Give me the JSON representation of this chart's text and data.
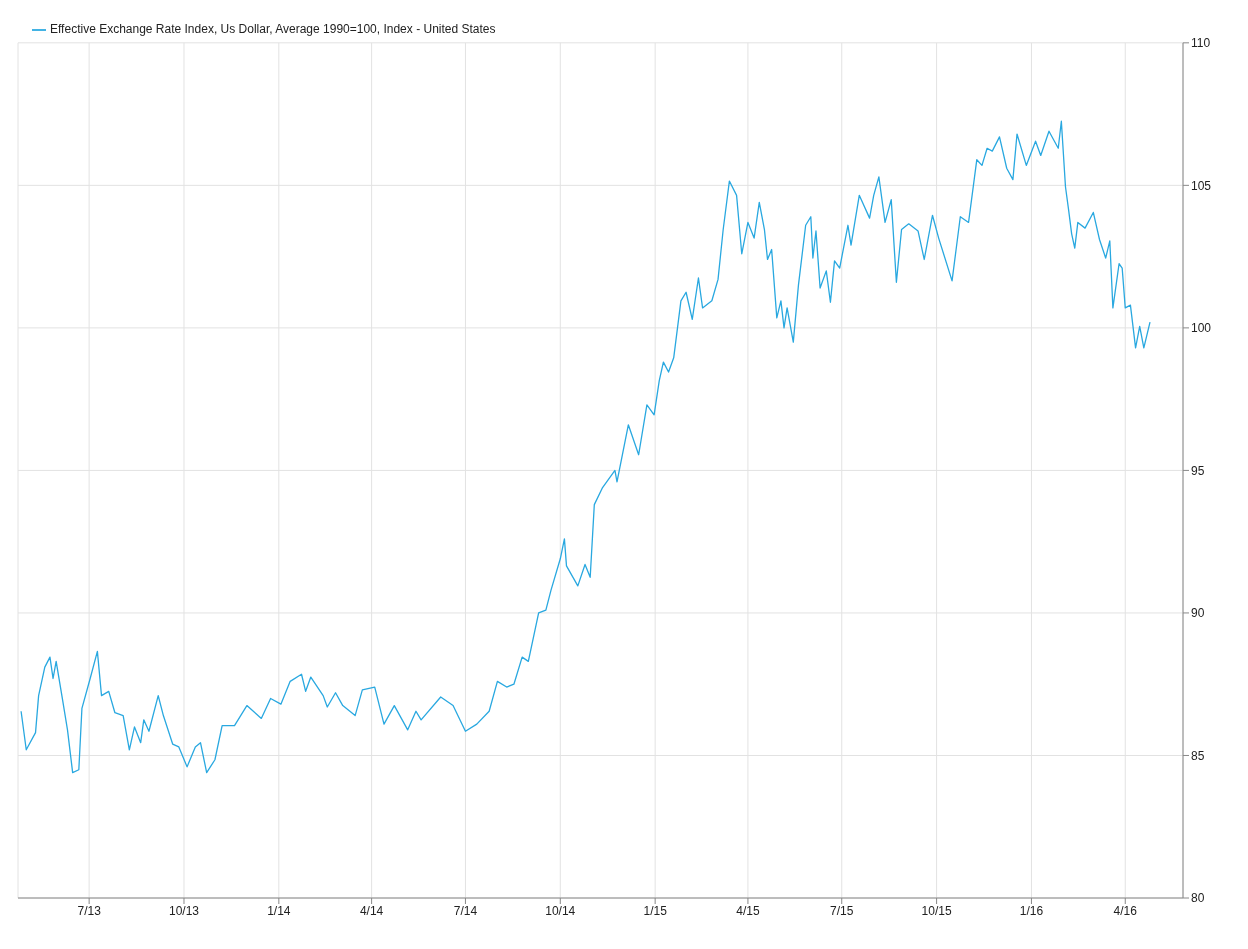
{
  "chart_data": {
    "type": "line",
    "legend": "top left",
    "grid": true,
    "xlim": [
      "2013-04-23",
      "2016-05-27"
    ],
    "xticks": [
      {
        "value": "2013-07-01",
        "label": "7/13"
      },
      {
        "value": "2013-10-01",
        "label": "10/13"
      },
      {
        "value": "2014-01-01",
        "label": "1/14"
      },
      {
        "value": "2014-04-01",
        "label": "4/14"
      },
      {
        "value": "2014-07-01",
        "label": "7/14"
      },
      {
        "value": "2014-10-01",
        "label": "10/14"
      },
      {
        "value": "2015-01-01",
        "label": "1/15"
      },
      {
        "value": "2015-04-01",
        "label": "4/15"
      },
      {
        "value": "2015-07-01",
        "label": "7/15"
      },
      {
        "value": "2015-10-01",
        "label": "10/15"
      },
      {
        "value": "2016-01-01",
        "label": "1/16"
      },
      {
        "value": "2016-04-01",
        "label": "4/16"
      }
    ],
    "ylim": [
      80,
      110
    ],
    "yticks": [
      80,
      85,
      90,
      95,
      100,
      105,
      110
    ],
    "series": [
      {
        "name": "Effective Exchange Rate Index, Us Dollar, Average 1990=100, Index - United States",
        "color": "#29a8e0",
        "x": [
          "2013-04-26",
          "2013-05-01",
          "2013-05-10",
          "2013-05-13",
          "2013-05-19",
          "2013-05-24",
          "2013-05-27",
          "2013-05-30",
          "2013-06-05",
          "2013-06-10",
          "2013-06-15",
          "2013-06-21",
          "2013-06-24",
          "2013-07-02",
          "2013-07-09",
          "2013-07-13",
          "2013-07-20",
          "2013-07-26",
          "2013-08-03",
          "2013-08-09",
          "2013-08-14",
          "2013-08-20",
          "2013-08-23",
          "2013-08-28",
          "2013-09-06",
          "2013-09-11",
          "2013-09-20",
          "2013-09-26",
          "2013-10-04",
          "2013-10-12",
          "2013-10-17",
          "2013-10-23",
          "2013-10-31",
          "2013-11-07",
          "2013-11-19",
          "2013-12-01",
          "2013-12-15",
          "2013-12-24",
          "2014-01-03",
          "2014-01-12",
          "2014-01-23",
          "2014-01-27",
          "2014-02-01",
          "2014-02-13",
          "2014-02-17",
          "2014-02-25",
          "2014-03-04",
          "2014-03-16",
          "2014-03-23",
          "2014-04-04",
          "2014-04-13",
          "2014-04-23",
          "2014-05-06",
          "2014-05-14",
          "2014-05-19",
          "2014-06-07",
          "2014-06-19",
          "2014-07-01",
          "2014-07-12",
          "2014-07-24",
          "2014-08-01",
          "2014-08-10",
          "2014-08-17",
          "2014-08-25",
          "2014-08-31",
          "2014-09-10",
          "2014-09-17",
          "2014-09-22",
          "2014-10-01",
          "2014-10-05",
          "2014-10-07",
          "2014-10-18",
          "2014-10-25",
          "2014-10-30",
          "2014-11-03",
          "2014-11-11",
          "2014-11-23",
          "2014-11-25",
          "2014-12-06",
          "2014-12-16",
          "2014-12-24",
          "2014-12-31",
          "2015-01-05",
          "2015-01-09",
          "2015-01-14",
          "2015-01-19",
          "2015-01-26",
          "2015-01-31",
          "2015-02-06",
          "2015-02-12",
          "2015-02-16",
          "2015-02-25",
          "2015-03-03",
          "2015-03-08",
          "2015-03-14",
          "2015-03-21",
          "2015-03-26",
          "2015-04-01",
          "2015-04-07",
          "2015-04-12",
          "2015-04-17",
          "2015-04-20",
          "2015-04-24",
          "2015-04-29",
          "2015-05-03",
          "2015-05-06",
          "2015-05-09",
          "2015-05-15",
          "2015-05-20",
          "2015-05-27",
          "2015-06-01",
          "2015-06-03",
          "2015-06-06",
          "2015-06-10",
          "2015-06-16",
          "2015-06-20",
          "2015-06-24",
          "2015-06-29",
          "2015-07-07",
          "2015-07-10",
          "2015-07-18",
          "2015-07-28",
          "2015-08-01",
          "2015-08-06",
          "2015-08-12",
          "2015-08-18",
          "2015-08-23",
          "2015-08-28",
          "2015-09-04",
          "2015-09-13",
          "2015-09-19",
          "2015-09-27",
          "2015-10-03",
          "2015-10-16",
          "2015-10-24",
          "2015-11-01",
          "2015-11-09",
          "2015-11-14",
          "2015-11-19",
          "2015-11-24",
          "2015-12-01",
          "2015-12-08",
          "2015-12-14",
          "2015-12-18",
          "2015-12-27",
          "2016-01-05",
          "2016-01-10",
          "2016-01-18",
          "2016-01-27",
          "2016-01-30",
          "2016-02-03",
          "2016-02-06",
          "2016-02-09",
          "2016-02-12",
          "2016-02-15",
          "2016-02-22",
          "2016-03-01",
          "2016-03-07",
          "2016-03-13",
          "2016-03-17",
          "2016-03-20",
          "2016-03-26",
          "2016-03-29",
          "2016-04-01",
          "2016-04-06",
          "2016-04-11",
          "2016-04-15",
          "2016-04-19",
          "2016-04-25"
        ],
        "values": [
          86.55,
          85.2,
          85.8,
          87.1,
          88.1,
          88.45,
          87.7,
          88.3,
          87.0,
          85.9,
          84.4,
          84.5,
          86.65,
          87.7,
          88.65,
          87.1,
          87.25,
          86.5,
          86.4,
          85.2,
          86.0,
          85.45,
          86.25,
          85.85,
          87.1,
          86.4,
          85.4,
          85.3,
          84.6,
          85.3,
          85.45,
          84.4,
          84.85,
          86.05,
          86.05,
          86.75,
          86.3,
          87.0,
          86.8,
          87.6,
          87.85,
          87.25,
          87.75,
          87.1,
          86.7,
          87.2,
          86.75,
          86.4,
          87.3,
          87.4,
          86.1,
          86.75,
          85.9,
          86.55,
          86.25,
          87.05,
          86.75,
          85.85,
          86.1,
          86.55,
          87.6,
          87.4,
          87.5,
          88.45,
          88.3,
          90.0,
          90.1,
          90.8,
          91.9,
          92.6,
          91.65,
          90.95,
          91.7,
          91.25,
          93.8,
          94.4,
          95.0,
          94.6,
          96.6,
          95.55,
          97.3,
          96.95,
          98.15,
          98.8,
          98.45,
          98.95,
          100.95,
          101.25,
          100.3,
          101.75,
          100.7,
          100.95,
          101.7,
          103.45,
          105.15,
          104.65,
          102.6,
          103.7,
          103.15,
          104.4,
          103.45,
          102.4,
          102.75,
          100.35,
          100.95,
          100.0,
          100.7,
          99.5,
          101.5,
          103.6,
          103.9,
          102.45,
          103.4,
          101.4,
          102.0,
          100.9,
          102.35,
          102.1,
          103.6,
          102.9,
          104.65,
          103.85,
          104.65,
          105.3,
          103.7,
          104.5,
          101.6,
          103.45,
          103.65,
          103.4,
          102.4,
          103.95,
          103.15,
          101.65,
          103.9,
          103.7,
          105.9,
          105.7,
          106.3,
          106.2,
          106.7,
          105.6,
          105.2,
          106.8,
          105.7,
          106.55,
          106.05,
          106.9,
          106.3,
          107.25,
          104.95,
          104.15,
          103.3,
          102.8,
          103.7,
          103.5,
          104.05,
          103.1,
          102.45,
          103.05,
          100.7,
          102.25,
          102.1,
          100.7,
          100.8,
          99.3,
          100.05,
          99.3,
          100.2
        ]
      }
    ]
  }
}
